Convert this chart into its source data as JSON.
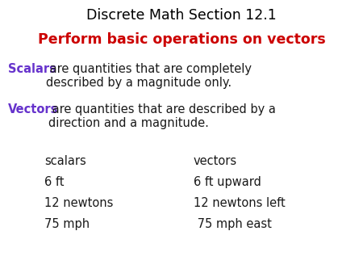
{
  "title": "Discrete Math Section 12.1",
  "subtitle": "Perform basic operations on vectors",
  "title_color": "#000000",
  "subtitle_color": "#cc0000",
  "purple_color": "#6633cc",
  "body_color": "#1a1a1a",
  "background_color": "#ffffff",
  "scalars_bold": "Scalars",
  "scalars_rest": " are quantities that are completely\ndescribed by a magnitude only.",
  "vectors_bold": "Vectors",
  "vectors_rest": " are quantities that are described by a\ndirection and a magnitude.",
  "table_header_left": "scalars",
  "table_header_right": "vectors",
  "table_rows": [
    [
      "6 ft",
      "6 ft upward"
    ],
    [
      "12 newtons",
      "12 newtons left"
    ],
    [
      "75 mph",
      " 75 mph east"
    ]
  ],
  "title_fontsize": 12.5,
  "subtitle_fontsize": 12.5,
  "body_fontsize": 10.5,
  "table_fontsize": 10.5
}
